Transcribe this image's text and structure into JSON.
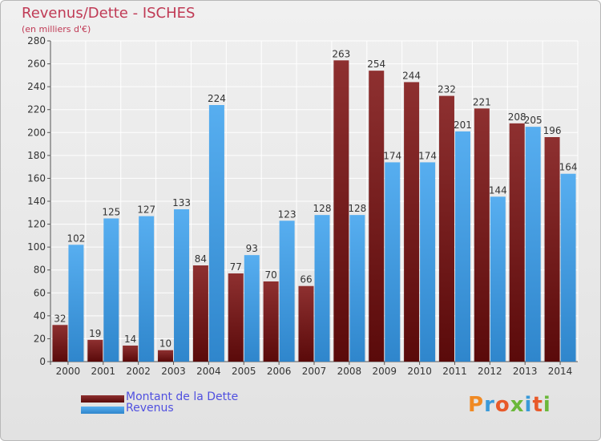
{
  "chart_data": {
    "type": "bar",
    "title": "Revenus/Dette - ISCHES",
    "subtitle": "(en milliers d'€)",
    "categories": [
      "2000",
      "2001",
      "2002",
      "2003",
      "2004",
      "2005",
      "2006",
      "2007",
      "2008",
      "2009",
      "2010",
      "2011",
      "2012",
      "2013",
      "2014"
    ],
    "series": [
      {
        "name": "Montant de la Dette",
        "color": "#8b2a2a",
        "values": [
          32,
          19,
          14,
          10,
          84,
          77,
          70,
          66,
          263,
          254,
          244,
          232,
          221,
          208,
          196
        ]
      },
      {
        "name": "Revenus",
        "color": "#3d98e0",
        "values": [
          102,
          125,
          127,
          133,
          224,
          93,
          123,
          128,
          128,
          174,
          174,
          201,
          144,
          205,
          164
        ]
      }
    ],
    "ylim": [
      0,
      280
    ],
    "yticks": [
      0,
      20,
      40,
      60,
      80,
      100,
      120,
      140,
      160,
      180,
      200,
      220,
      240,
      260,
      280
    ],
    "grid": true,
    "legend_position": "bottom-left"
  },
  "logo": {
    "text": "Proxiti",
    "colors": [
      "#f08a24",
      "#3a9ad9",
      "#e85a2a",
      "#6bb83a",
      "#3a9ad9",
      "#e85a2a",
      "#6bb83a"
    ]
  }
}
